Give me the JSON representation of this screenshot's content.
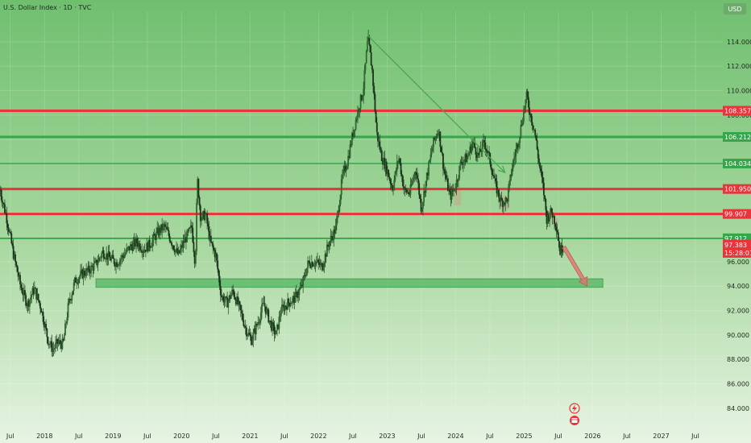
{
  "header": {
    "title": "U.S. Dollar Index · 1D · TVC",
    "currency_badge": "USD"
  },
  "colors": {
    "background_top": "#6fbf6f",
    "background_bottom": "#e7f4e3",
    "resistance": "#e8343a",
    "support": "#35a64a",
    "candle": "#1f3d1f",
    "zone_fill": "#5fba6a",
    "arrow": "#4aa84f",
    "down_arrow": "#e07070",
    "price_label": "#e8343a",
    "axis_text": "#1f2a1f"
  },
  "footer_icons": [
    "lightning-icon",
    "calendar-icon"
  ],
  "chart_data": {
    "type": "candlestick",
    "title": "U.S. Dollar Index · 1D · TVC",
    "ylim": [
      83,
      116.5
    ],
    "y_ticks": [
      "84.000",
      "86.000",
      "88.000",
      "90.000",
      "92.000",
      "94.000",
      "96.000",
      "98.000",
      "100.000",
      "102.000",
      "104.000",
      "106.000",
      "108.000",
      "110.000",
      "112.000",
      "114.000"
    ],
    "x_range": [
      2017.35,
      2027.9
    ],
    "x_ticks": [
      {
        "t": 2017.5,
        "label": "Jul"
      },
      {
        "t": 2018.0,
        "label": "2018"
      },
      {
        "t": 2018.5,
        "label": "Jul"
      },
      {
        "t": 2019.0,
        "label": "2019"
      },
      {
        "t": 2019.5,
        "label": "Jul"
      },
      {
        "t": 2020.0,
        "label": "2020"
      },
      {
        "t": 2020.5,
        "label": "Jul"
      },
      {
        "t": 2021.0,
        "label": "2021"
      },
      {
        "t": 2021.5,
        "label": "Jul"
      },
      {
        "t": 2022.0,
        "label": "2022"
      },
      {
        "t": 2022.5,
        "label": "Jul"
      },
      {
        "t": 2023.0,
        "label": "2023"
      },
      {
        "t": 2023.5,
        "label": "Jul"
      },
      {
        "t": 2024.0,
        "label": "2024"
      },
      {
        "t": 2024.5,
        "label": "Jul"
      },
      {
        "t": 2025.0,
        "label": "2025"
      },
      {
        "t": 2025.5,
        "label": "Jul"
      },
      {
        "t": 2026.0,
        "label": "2026"
      },
      {
        "t": 2026.5,
        "label": "Jul"
      },
      {
        "t": 2027.0,
        "label": "2027"
      },
      {
        "t": 2027.5,
        "label": "Jul"
      }
    ],
    "price_path": [
      [
        2017.35,
        101.9
      ],
      [
        2017.45,
        99.5
      ],
      [
        2017.55,
        96.5
      ],
      [
        2017.65,
        94.0
      ],
      [
        2017.75,
        92.5
      ],
      [
        2017.85,
        93.8
      ],
      [
        2017.95,
        92.2
      ],
      [
        2018.05,
        89.6
      ],
      [
        2018.12,
        88.8
      ],
      [
        2018.2,
        89.4
      ],
      [
        2018.27,
        89.2
      ],
      [
        2018.35,
        92.5
      ],
      [
        2018.45,
        94.5
      ],
      [
        2018.55,
        95.0
      ],
      [
        2018.65,
        95.3
      ],
      [
        2018.75,
        95.8
      ],
      [
        2018.85,
        96.8
      ],
      [
        2018.95,
        96.3
      ],
      [
        2019.05,
        95.9
      ],
      [
        2019.15,
        96.5
      ],
      [
        2019.25,
        97.2
      ],
      [
        2019.35,
        97.6
      ],
      [
        2019.45,
        97.0
      ],
      [
        2019.55,
        97.5
      ],
      [
        2019.65,
        98.4
      ],
      [
        2019.75,
        98.9
      ],
      [
        2019.85,
        97.7
      ],
      [
        2019.95,
        96.5
      ],
      [
        2020.05,
        97.8
      ],
      [
        2020.15,
        98.8
      ],
      [
        2020.2,
        95.8
      ],
      [
        2020.23,
        102.8
      ],
      [
        2020.28,
        99.5
      ],
      [
        2020.35,
        99.9
      ],
      [
        2020.42,
        97.6
      ],
      [
        2020.5,
        96.5
      ],
      [
        2020.58,
        93.2
      ],
      [
        2020.66,
        92.6
      ],
      [
        2020.75,
        93.6
      ],
      [
        2020.85,
        92.1
      ],
      [
        2020.95,
        90.3
      ],
      [
        2021.02,
        89.6
      ],
      [
        2021.1,
        90.8
      ],
      [
        2021.2,
        92.6
      ],
      [
        2021.3,
        90.9
      ],
      [
        2021.38,
        90.0
      ],
      [
        2021.45,
        92.0
      ],
      [
        2021.55,
        92.6
      ],
      [
        2021.65,
        93.0
      ],
      [
        2021.75,
        93.9
      ],
      [
        2021.85,
        95.9
      ],
      [
        2021.95,
        96.0
      ],
      [
        2022.05,
        95.6
      ],
      [
        2022.15,
        97.5
      ],
      [
        2022.25,
        98.7
      ],
      [
        2022.35,
        103.0
      ],
      [
        2022.42,
        104.2
      ],
      [
        2022.5,
        106.5
      ],
      [
        2022.58,
        108.5
      ],
      [
        2022.65,
        110.0
      ],
      [
        2022.72,
        114.3
      ],
      [
        2022.78,
        111.8
      ],
      [
        2022.85,
        106.5
      ],
      [
        2022.92,
        104.6
      ],
      [
        2023.0,
        103.5
      ],
      [
        2023.08,
        102.0
      ],
      [
        2023.17,
        104.6
      ],
      [
        2023.25,
        101.8
      ],
      [
        2023.33,
        101.6
      ],
      [
        2023.42,
        103.7
      ],
      [
        2023.5,
        100.3
      ],
      [
        2023.58,
        103.0
      ],
      [
        2023.67,
        105.6
      ],
      [
        2023.75,
        106.9
      ],
      [
        2023.83,
        103.5
      ],
      [
        2023.92,
        101.3
      ],
      [
        2024.0,
        102.2
      ],
      [
        2024.08,
        104.2
      ],
      [
        2024.17,
        104.5
      ],
      [
        2024.25,
        105.8
      ],
      [
        2024.33,
        104.6
      ],
      [
        2024.42,
        105.8
      ],
      [
        2024.5,
        104.3
      ],
      [
        2024.58,
        102.3
      ],
      [
        2024.66,
        100.9
      ],
      [
        2024.75,
        101.0
      ],
      [
        2024.83,
        103.9
      ],
      [
        2024.92,
        106.0
      ],
      [
        2025.0,
        108.5
      ],
      [
        2025.04,
        109.6
      ],
      [
        2025.08,
        108.3
      ],
      [
        2025.15,
        106.8
      ],
      [
        2025.22,
        104.0
      ],
      [
        2025.28,
        102.0
      ],
      [
        2025.33,
        99.5
      ],
      [
        2025.4,
        100.1
      ],
      [
        2025.48,
        98.8
      ],
      [
        2025.52,
        96.8
      ],
      [
        2025.58,
        97.38
      ]
    ],
    "horizontal_levels": [
      {
        "value": 108.357,
        "label": "108.357",
        "color": "#e8343a",
        "width": 3
      },
      {
        "value": 106.212,
        "label": "106.212",
        "color": "#35a64a",
        "width": 3
      },
      {
        "value": 104.034,
        "label": "104.034",
        "color": "#35a64a",
        "width": 1.5
      },
      {
        "value": 101.95,
        "label": "101.950",
        "color": "#e8343a",
        "width": 3
      },
      {
        "value": 99.907,
        "label": "99.907",
        "color": "#e8343a",
        "width": 3
      },
      {
        "value": 97.912,
        "label": "97.912",
        "color": "#35a64a",
        "width": 2
      }
    ],
    "support_zone": {
      "t_start": 2018.75,
      "t_end": 2026.15,
      "y_low": 93.9,
      "y_high": 94.6
    },
    "trend_arrow": {
      "from": [
        2022.72,
        114.5
      ],
      "to": [
        2024.72,
        103.3
      ]
    },
    "projection_arrow": {
      "from": [
        2025.58,
        97.2
      ],
      "to": [
        2025.92,
        94.0
      ]
    },
    "last_price": {
      "value": 97.383,
      "label": "97.383",
      "countdown": "15:28:01"
    },
    "small_zones": [
      {
        "t_start": 2023.98,
        "t_end": 2024.08,
        "y_low": 100.6,
        "y_high": 101.9
      },
      {
        "t_start": 2024.66,
        "t_end": 2024.78,
        "y_low": 100.3,
        "y_high": 101.4
      },
      {
        "t_start": 2025.4,
        "t_end": 2025.5,
        "y_low": 99.1,
        "y_high": 99.6
      }
    ]
  }
}
